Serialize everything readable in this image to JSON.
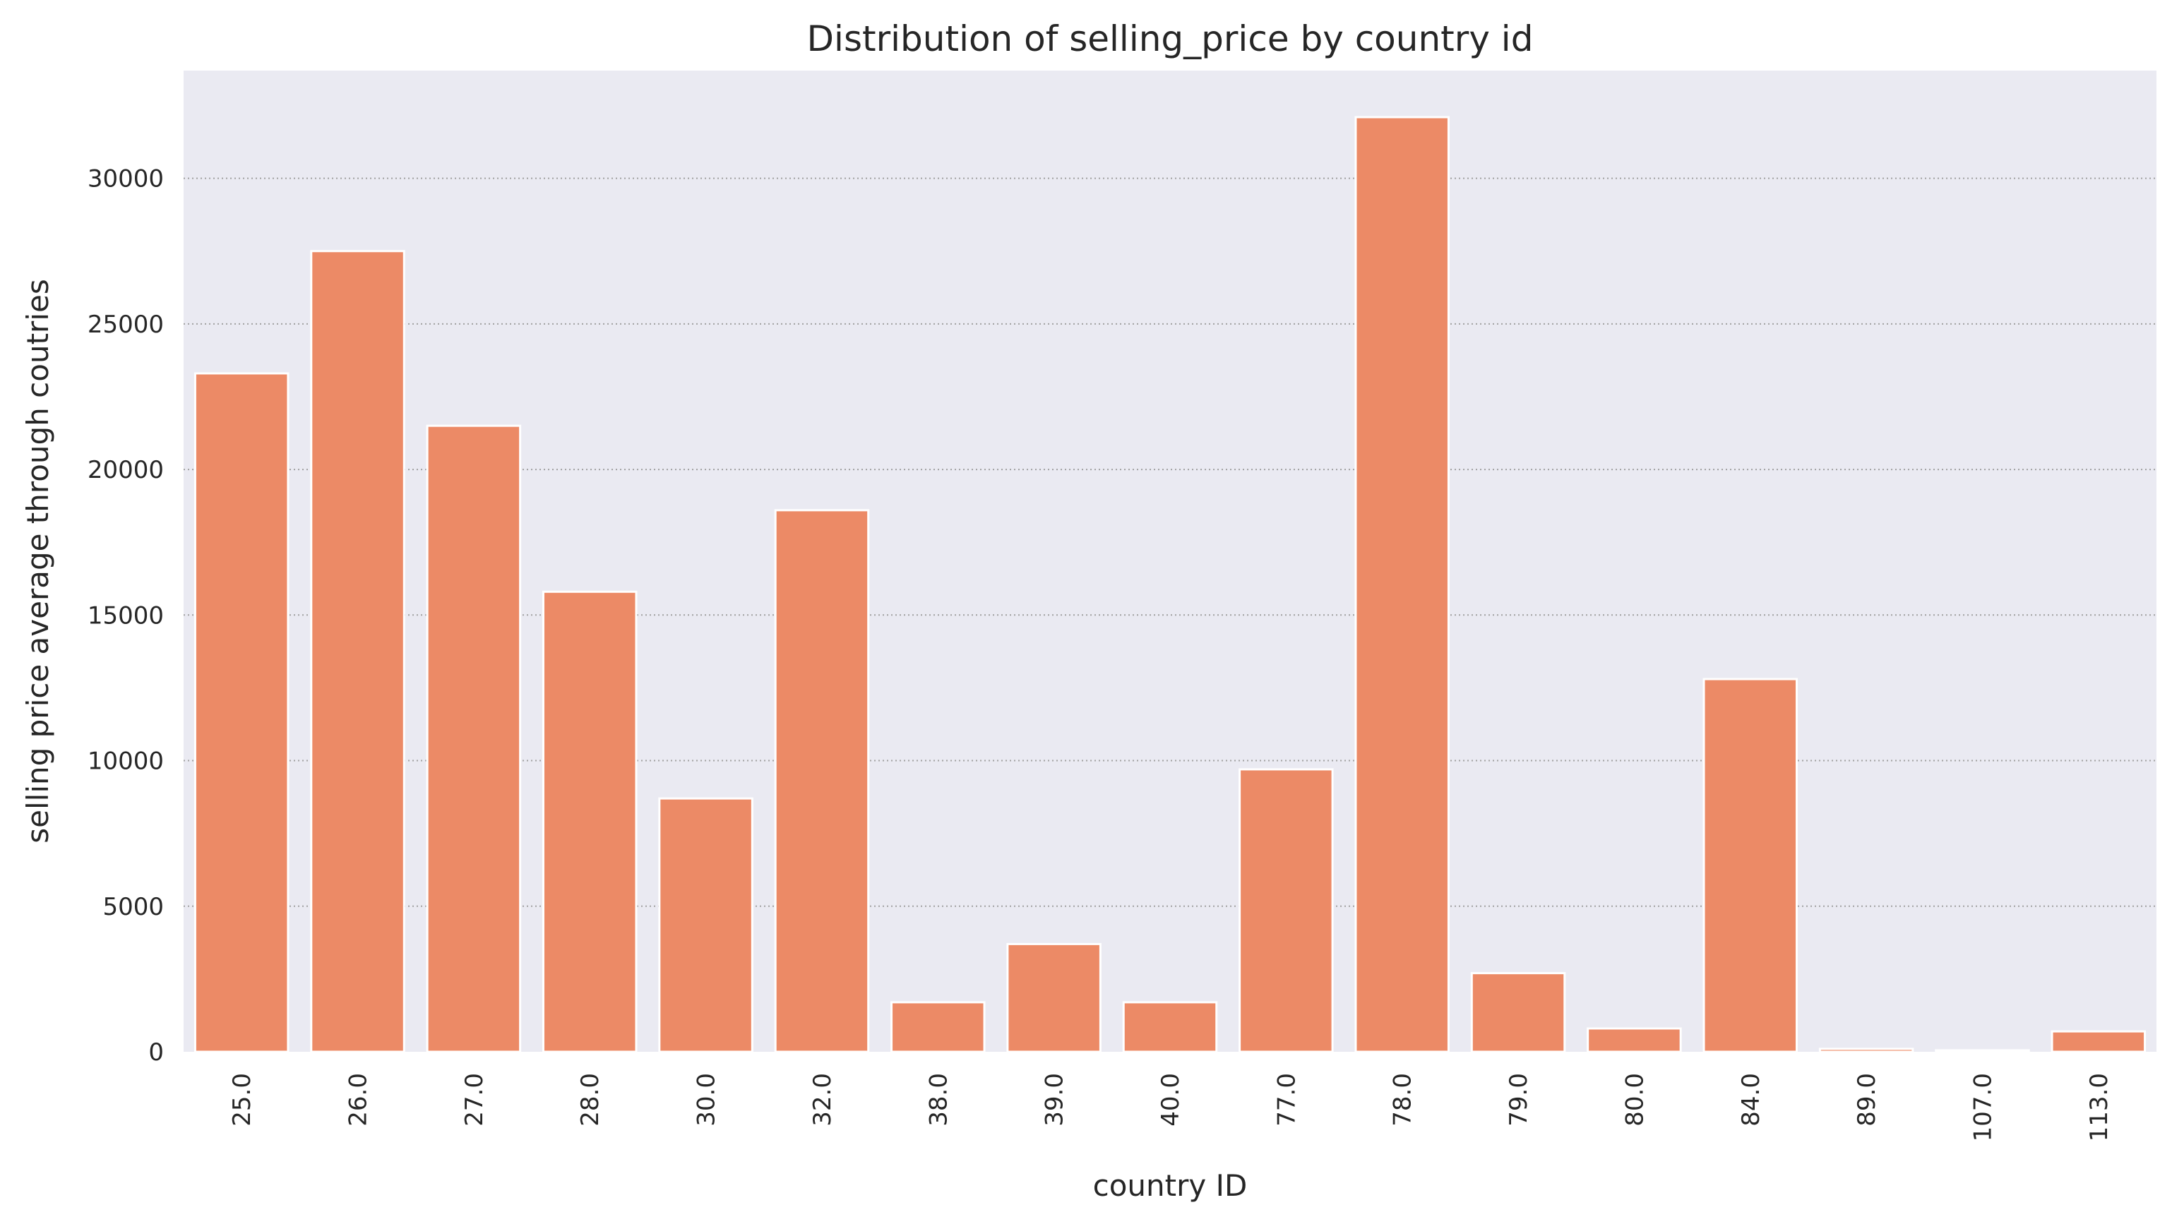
{
  "chart_data": {
    "type": "bar",
    "title": "Distribution of selling_price by country id",
    "xlabel": "country ID",
    "ylabel": "selling price average through coutries",
    "categories": [
      "25.0",
      "26.0",
      "27.0",
      "28.0",
      "30.0",
      "32.0",
      "38.0",
      "39.0",
      "40.0",
      "77.0",
      "78.0",
      "79.0",
      "80.0",
      "84.0",
      "89.0",
      "107.0",
      "113.0"
    ],
    "values": [
      23300,
      27500,
      21500,
      15800,
      8700,
      18600,
      1700,
      3700,
      1700,
      9700,
      32100,
      2700,
      800,
      12800,
      100,
      50,
      700
    ],
    "ylim": [
      0,
      33700
    ],
    "yticks": [
      0,
      5000,
      10000,
      15000,
      20000,
      25000,
      30000
    ],
    "ytick_labels": [
      "0",
      "5000",
      "10000",
      "15000",
      "20000",
      "25000",
      "30000"
    ],
    "grid": "y",
    "colors": {
      "bar": "#ec8a66",
      "plot_bg": "#eaeaf2",
      "grid": "#a0a0a0",
      "bar_edge": "#ffffff"
    }
  }
}
